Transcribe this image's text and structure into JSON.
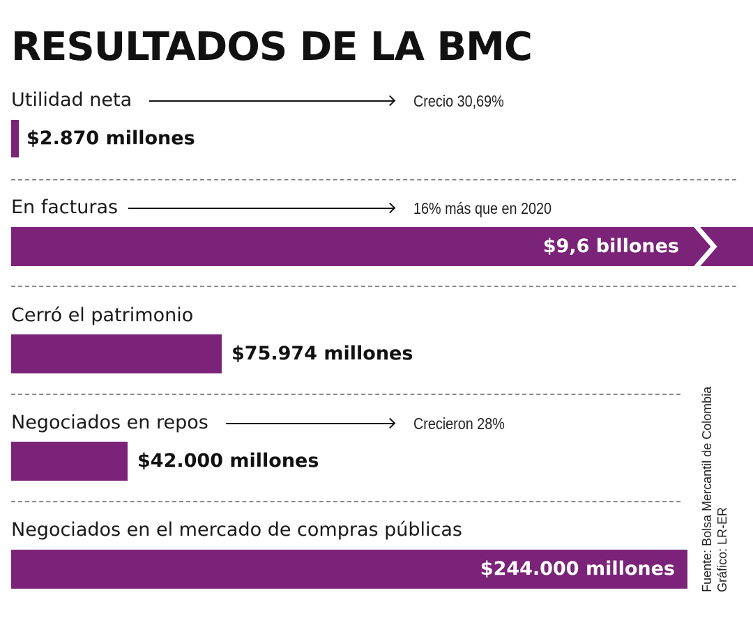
{
  "title": "RESULTADOS DE LA BMC",
  "accent_color": "#7b2378",
  "items": [
    {
      "label": "Utilidad neta",
      "note": "Crecio 30,69%",
      "value_text": "$2.870 millones"
    },
    {
      "label": "En facturas",
      "note": "16% más que en 2020",
      "value_text": "$9,6 billones"
    },
    {
      "label": "Cerró el patrimonio",
      "value_text": "$75.974 millones"
    },
    {
      "label": "Negociados en repos",
      "note": "Crecieron 28%",
      "value_text": "$42.000 millones"
    },
    {
      "label": "Negociados en el mercado de compras públicas",
      "value_text": "$244.000 millones"
    }
  ],
  "source": {
    "line1": "Fuente: Bolsa Mercantil de Colombia",
    "line2": "Gráfico: LR-ER"
  },
  "chart_data": {
    "type": "bar",
    "orientation": "horizontal",
    "title": "RESULTADOS DE LA BMC",
    "categories": [
      "Utilidad neta",
      "En facturas",
      "Cerró el patrimonio",
      "Negociados en repos",
      "Negociados en el mercado de compras públicas"
    ],
    "values": [
      2870,
      9600000,
      75974,
      42000,
      244000
    ],
    "value_labels": [
      "$2.870 millones",
      "$9,6 billones",
      "$75.974 millones",
      "$42.000 millones",
      "$244.000 millones"
    ],
    "annotations": [
      "Crecio 30,69%",
      "16% más que en 2020",
      "",
      "Crecieron 28%",
      ""
    ],
    "broken_bar": [
      false,
      true,
      false,
      false,
      false
    ],
    "grid": false,
    "legend": "none"
  }
}
